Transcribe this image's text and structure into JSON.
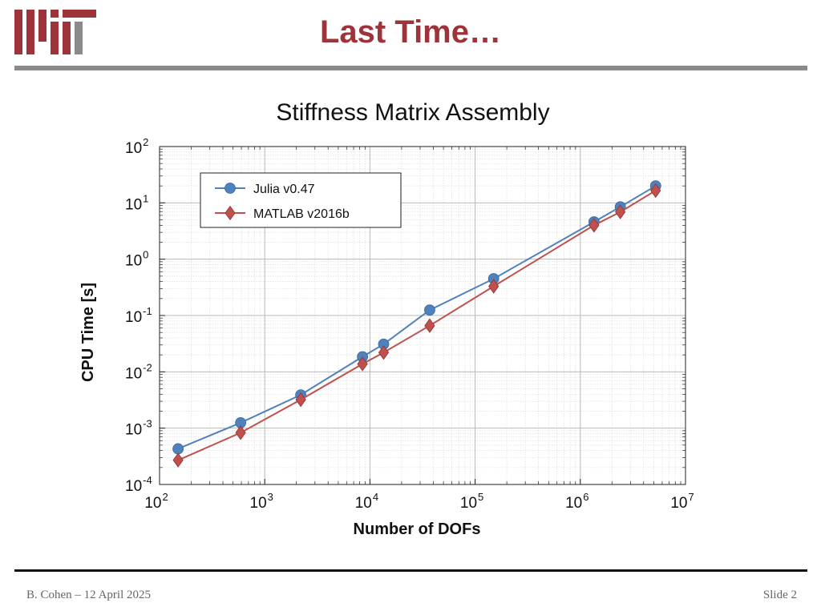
{
  "slide": {
    "title": "Last Time…",
    "footer_left": "B. Cohen – 12 April 2025",
    "footer_right": "Slide 2",
    "accent_color": "#9e3339",
    "logo_icon": "mit-logo"
  },
  "chart_data": {
    "type": "line",
    "title": "Stiffness Matrix Assembly",
    "xlabel": "Number of DOFs",
    "ylabel": "CPU Time [s]",
    "x_scale": "log",
    "y_scale": "log",
    "xlim": [
      100,
      10000000
    ],
    "ylim": [
      0.0001,
      100
    ],
    "x_ticks": [
      {
        "value": 100,
        "base": "10",
        "exp": "2"
      },
      {
        "value": 1000,
        "base": "10",
        "exp": "3"
      },
      {
        "value": 10000,
        "base": "10",
        "exp": "4"
      },
      {
        "value": 100000,
        "base": "10",
        "exp": "5"
      },
      {
        "value": 1000000,
        "base": "10",
        "exp": "6"
      },
      {
        "value": 10000000,
        "base": "10",
        "exp": "7"
      }
    ],
    "y_ticks": [
      {
        "value": 0.0001,
        "base": "10",
        "exp": "-4"
      },
      {
        "value": 0.001,
        "base": "10",
        "exp": "-3"
      },
      {
        "value": 0.01,
        "base": "10",
        "exp": "-2"
      },
      {
        "value": 0.1,
        "base": "10",
        "exp": "-1"
      },
      {
        "value": 1,
        "base": "10",
        "exp": "0"
      },
      {
        "value": 10,
        "base": "10",
        "exp": "1"
      },
      {
        "value": 100,
        "base": "10",
        "exp": "2"
      }
    ],
    "grid": true,
    "legend_position": "top-left",
    "series": [
      {
        "name": "Julia v0.47",
        "color": "#4f81bd",
        "marker": "circle",
        "points": [
          {
            "x": 150,
            "y": 0.00043
          },
          {
            "x": 590,
            "y": 0.00125
          },
          {
            "x": 2200,
            "y": 0.0039
          },
          {
            "x": 8500,
            "y": 0.0185
          },
          {
            "x": 13500,
            "y": 0.031
          },
          {
            "x": 37000,
            "y": 0.125
          },
          {
            "x": 150000,
            "y": 0.45
          },
          {
            "x": 1350000,
            "y": 4.6
          },
          {
            "x": 2400000,
            "y": 8.5
          },
          {
            "x": 5200000,
            "y": 20
          }
        ]
      },
      {
        "name": "MATLAB v2016b",
        "color": "#c0504d",
        "marker": "diamond",
        "points": [
          {
            "x": 150,
            "y": 0.00027
          },
          {
            "x": 590,
            "y": 0.00083
          },
          {
            "x": 2200,
            "y": 0.0032
          },
          {
            "x": 8500,
            "y": 0.0138
          },
          {
            "x": 13500,
            "y": 0.022
          },
          {
            "x": 37000,
            "y": 0.066
          },
          {
            "x": 150000,
            "y": 0.33
          },
          {
            "x": 1350000,
            "y": 4.0
          },
          {
            "x": 2400000,
            "y": 6.9
          },
          {
            "x": 5200000,
            "y": 16.5
          }
        ]
      }
    ]
  }
}
